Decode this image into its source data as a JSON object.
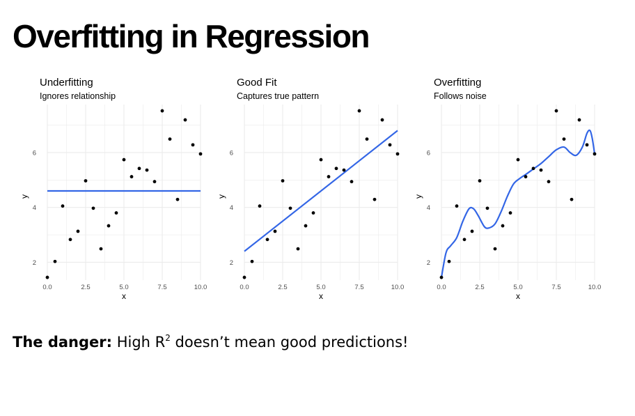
{
  "slide": {
    "title": "Overfitting in Regression",
    "footnote": {
      "bold_part": "The danger:",
      "text_before_sup": " High R",
      "sup": "2",
      "text_after_sup": " doesn’t mean good predictions!"
    }
  },
  "colors": {
    "fit_line": "#3366E6",
    "points": "#000000",
    "grid": "#EBEBEB",
    "tick_text": "#4D4D4D"
  },
  "chart_data": [
    {
      "type": "scatter",
      "title": "Underfitting",
      "subtitle": "Ignores relationship",
      "xlabel": "x",
      "ylabel": "y",
      "xlim": [
        0,
        10
      ],
      "ylim": [
        1.35,
        7.75
      ],
      "xticks": [
        0.0,
        2.5,
        5.0,
        7.5,
        10.0
      ],
      "xtick_labels": [
        "0.0",
        "2.5",
        "5.0",
        "7.5",
        "10.0"
      ],
      "yticks": [
        2,
        4,
        6
      ],
      "ytick_labels": [
        "2",
        "4",
        "6"
      ],
      "grid": true,
      "points": [
        {
          "x": 0.0,
          "y": 1.45
        },
        {
          "x": 0.5,
          "y": 2.03
        },
        {
          "x": 1.0,
          "y": 4.05
        },
        {
          "x": 1.5,
          "y": 2.83
        },
        {
          "x": 2.0,
          "y": 3.13
        },
        {
          "x": 2.5,
          "y": 4.97
        },
        {
          "x": 3.0,
          "y": 3.97
        },
        {
          "x": 3.5,
          "y": 2.49
        },
        {
          "x": 4.0,
          "y": 3.33
        },
        {
          "x": 4.5,
          "y": 3.8
        },
        {
          "x": 5.0,
          "y": 5.74
        },
        {
          "x": 5.5,
          "y": 5.12
        },
        {
          "x": 6.0,
          "y": 5.42
        },
        {
          "x": 6.5,
          "y": 5.36
        },
        {
          "x": 7.0,
          "y": 4.94
        },
        {
          "x": 7.5,
          "y": 7.52
        },
        {
          "x": 8.0,
          "y": 6.49
        },
        {
          "x": 8.5,
          "y": 4.29
        },
        {
          "x": 9.0,
          "y": 7.19
        },
        {
          "x": 9.5,
          "y": 6.28
        },
        {
          "x": 10.0,
          "y": 5.95
        }
      ],
      "fit": {
        "kind": "constant",
        "y": 4.6
      }
    },
    {
      "type": "scatter",
      "title": "Good Fit",
      "subtitle": "Captures true pattern",
      "xlabel": "x",
      "ylabel": "y",
      "xlim": [
        0,
        10
      ],
      "ylim": [
        1.35,
        7.75
      ],
      "xticks": [
        0.0,
        2.5,
        5.0,
        7.5,
        10.0
      ],
      "xtick_labels": [
        "0.0",
        "2.5",
        "5.0",
        "7.5",
        "10.0"
      ],
      "yticks": [
        2,
        4,
        6
      ],
      "ytick_labels": [
        "2",
        "4",
        "6"
      ],
      "grid": true,
      "points": [
        {
          "x": 0.0,
          "y": 1.45
        },
        {
          "x": 0.5,
          "y": 2.03
        },
        {
          "x": 1.0,
          "y": 4.05
        },
        {
          "x": 1.5,
          "y": 2.83
        },
        {
          "x": 2.0,
          "y": 3.13
        },
        {
          "x": 2.5,
          "y": 4.97
        },
        {
          "x": 3.0,
          "y": 3.97
        },
        {
          "x": 3.5,
          "y": 2.49
        },
        {
          "x": 4.0,
          "y": 3.33
        },
        {
          "x": 4.5,
          "y": 3.8
        },
        {
          "x": 5.0,
          "y": 5.74
        },
        {
          "x": 5.5,
          "y": 5.12
        },
        {
          "x": 6.0,
          "y": 5.42
        },
        {
          "x": 6.5,
          "y": 5.36
        },
        {
          "x": 7.0,
          "y": 4.94
        },
        {
          "x": 7.5,
          "y": 7.52
        },
        {
          "x": 8.0,
          "y": 6.49
        },
        {
          "x": 8.5,
          "y": 4.29
        },
        {
          "x": 9.0,
          "y": 7.19
        },
        {
          "x": 9.5,
          "y": 6.28
        },
        {
          "x": 10.0,
          "y": 5.95
        }
      ],
      "fit": {
        "kind": "linear",
        "x": [
          0,
          10
        ],
        "y": [
          2.4,
          6.8
        ]
      }
    },
    {
      "type": "scatter",
      "title": "Overfitting",
      "subtitle": "Follows noise",
      "xlabel": "x",
      "ylabel": "y",
      "xlim": [
        0,
        10
      ],
      "ylim": [
        1.35,
        7.75
      ],
      "xticks": [
        0.0,
        2.5,
        5.0,
        7.5,
        10.0
      ],
      "xtick_labels": [
        "0.0",
        "2.5",
        "5.0",
        "7.5",
        "10.0"
      ],
      "yticks": [
        2,
        4,
        6
      ],
      "ytick_labels": [
        "2",
        "4",
        "6"
      ],
      "grid": true,
      "points": [
        {
          "x": 0.0,
          "y": 1.45
        },
        {
          "x": 0.5,
          "y": 2.03
        },
        {
          "x": 1.0,
          "y": 4.05
        },
        {
          "x": 1.5,
          "y": 2.83
        },
        {
          "x": 2.0,
          "y": 3.13
        },
        {
          "x": 2.5,
          "y": 4.97
        },
        {
          "x": 3.0,
          "y": 3.97
        },
        {
          "x": 3.5,
          "y": 2.49
        },
        {
          "x": 4.0,
          "y": 3.33
        },
        {
          "x": 4.5,
          "y": 3.8
        },
        {
          "x": 5.0,
          "y": 5.74
        },
        {
          "x": 5.5,
          "y": 5.12
        },
        {
          "x": 6.0,
          "y": 5.42
        },
        {
          "x": 6.5,
          "y": 5.36
        },
        {
          "x": 7.0,
          "y": 4.94
        },
        {
          "x": 7.5,
          "y": 7.52
        },
        {
          "x": 8.0,
          "y": 6.49
        },
        {
          "x": 8.5,
          "y": 4.29
        },
        {
          "x": 9.0,
          "y": 7.19
        },
        {
          "x": 9.5,
          "y": 6.28
        },
        {
          "x": 10.0,
          "y": 5.95
        }
      ],
      "fit": {
        "kind": "curve",
        "x": [
          0.0,
          0.3,
          0.6,
          1.0,
          1.4,
          1.8,
          2.1,
          2.4,
          2.8,
          3.1,
          3.5,
          3.9,
          4.3,
          4.7,
          5.1,
          5.5,
          6.0,
          6.5,
          7.0,
          7.5,
          8.0,
          8.4,
          8.8,
          9.2,
          9.5,
          9.7,
          9.85,
          10.0
        ],
        "y": [
          1.45,
          2.35,
          2.6,
          2.9,
          3.5,
          3.95,
          3.95,
          3.7,
          3.3,
          3.25,
          3.4,
          3.85,
          4.4,
          4.85,
          5.05,
          5.2,
          5.4,
          5.6,
          5.85,
          6.1,
          6.2,
          6.0,
          5.9,
          6.2,
          6.7,
          6.8,
          6.5,
          5.95
        ]
      }
    }
  ]
}
